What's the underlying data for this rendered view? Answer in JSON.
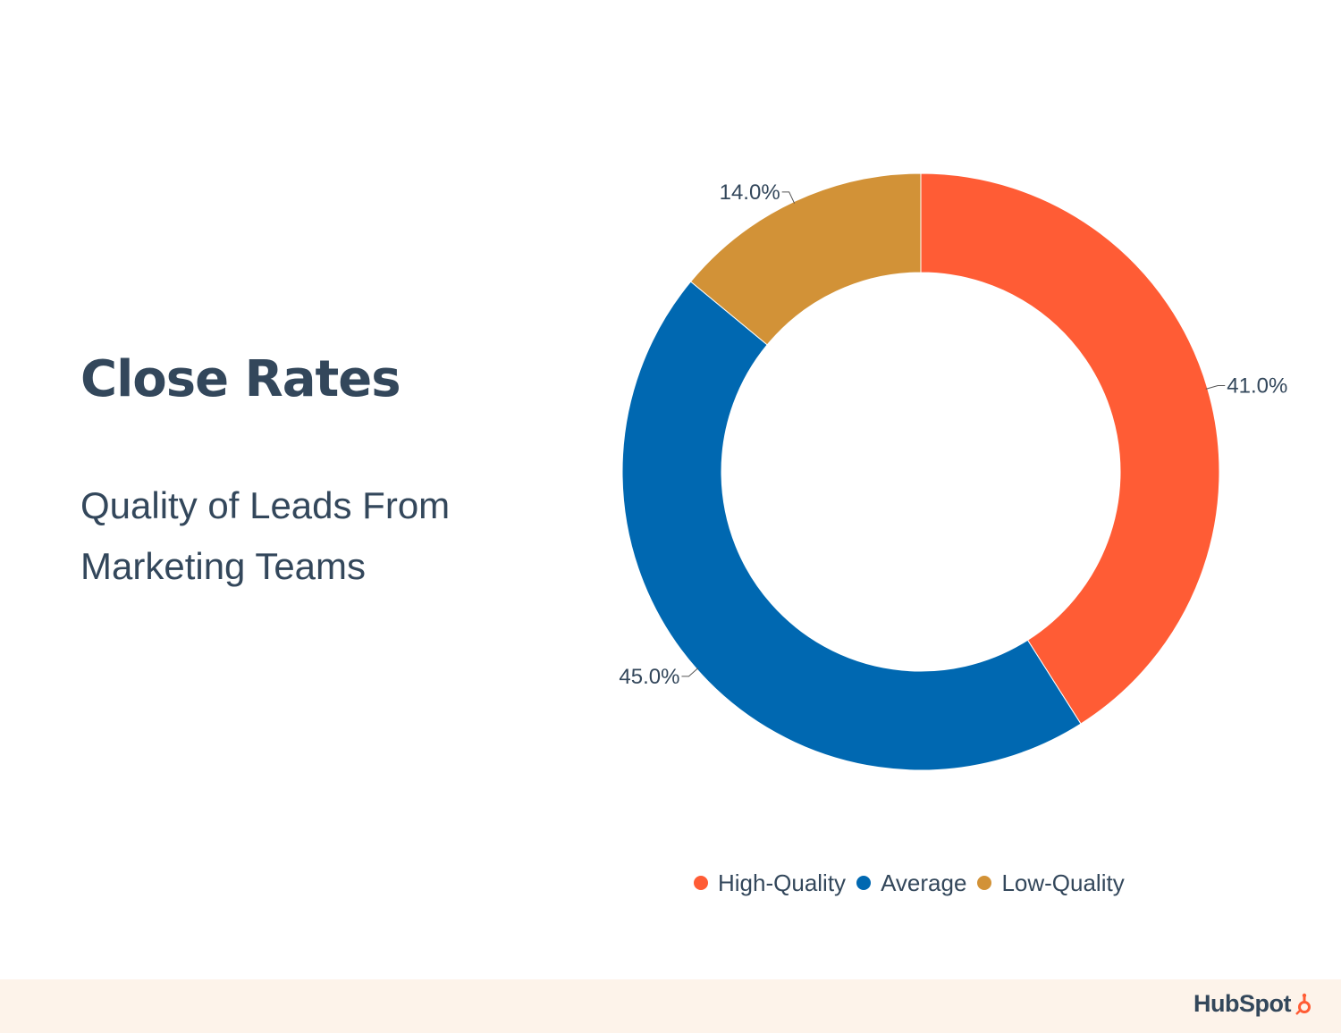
{
  "title": "Close Rates",
  "subtitle": [
    "Quality of Leads From",
    "Marketing Teams"
  ],
  "brand": "HubSpot",
  "colors": {
    "background": "#ffffff",
    "text": "#33475b",
    "footer": "#fdf3ea",
    "high_quality": "#ff5c35",
    "average": "#0068b1",
    "low_quality": "#d29237"
  },
  "chart_data": {
    "type": "pie",
    "variant": "donut",
    "categories": [
      "High-Quality",
      "Average",
      "Low-Quality"
    ],
    "values": [
      41.0,
      45.0,
      14.0
    ],
    "labels": [
      "41.0%",
      "45.0%",
      "14.0%"
    ],
    "colors": [
      "#ff5c35",
      "#0068b1",
      "#d29237"
    ],
    "legend": "bottom"
  }
}
